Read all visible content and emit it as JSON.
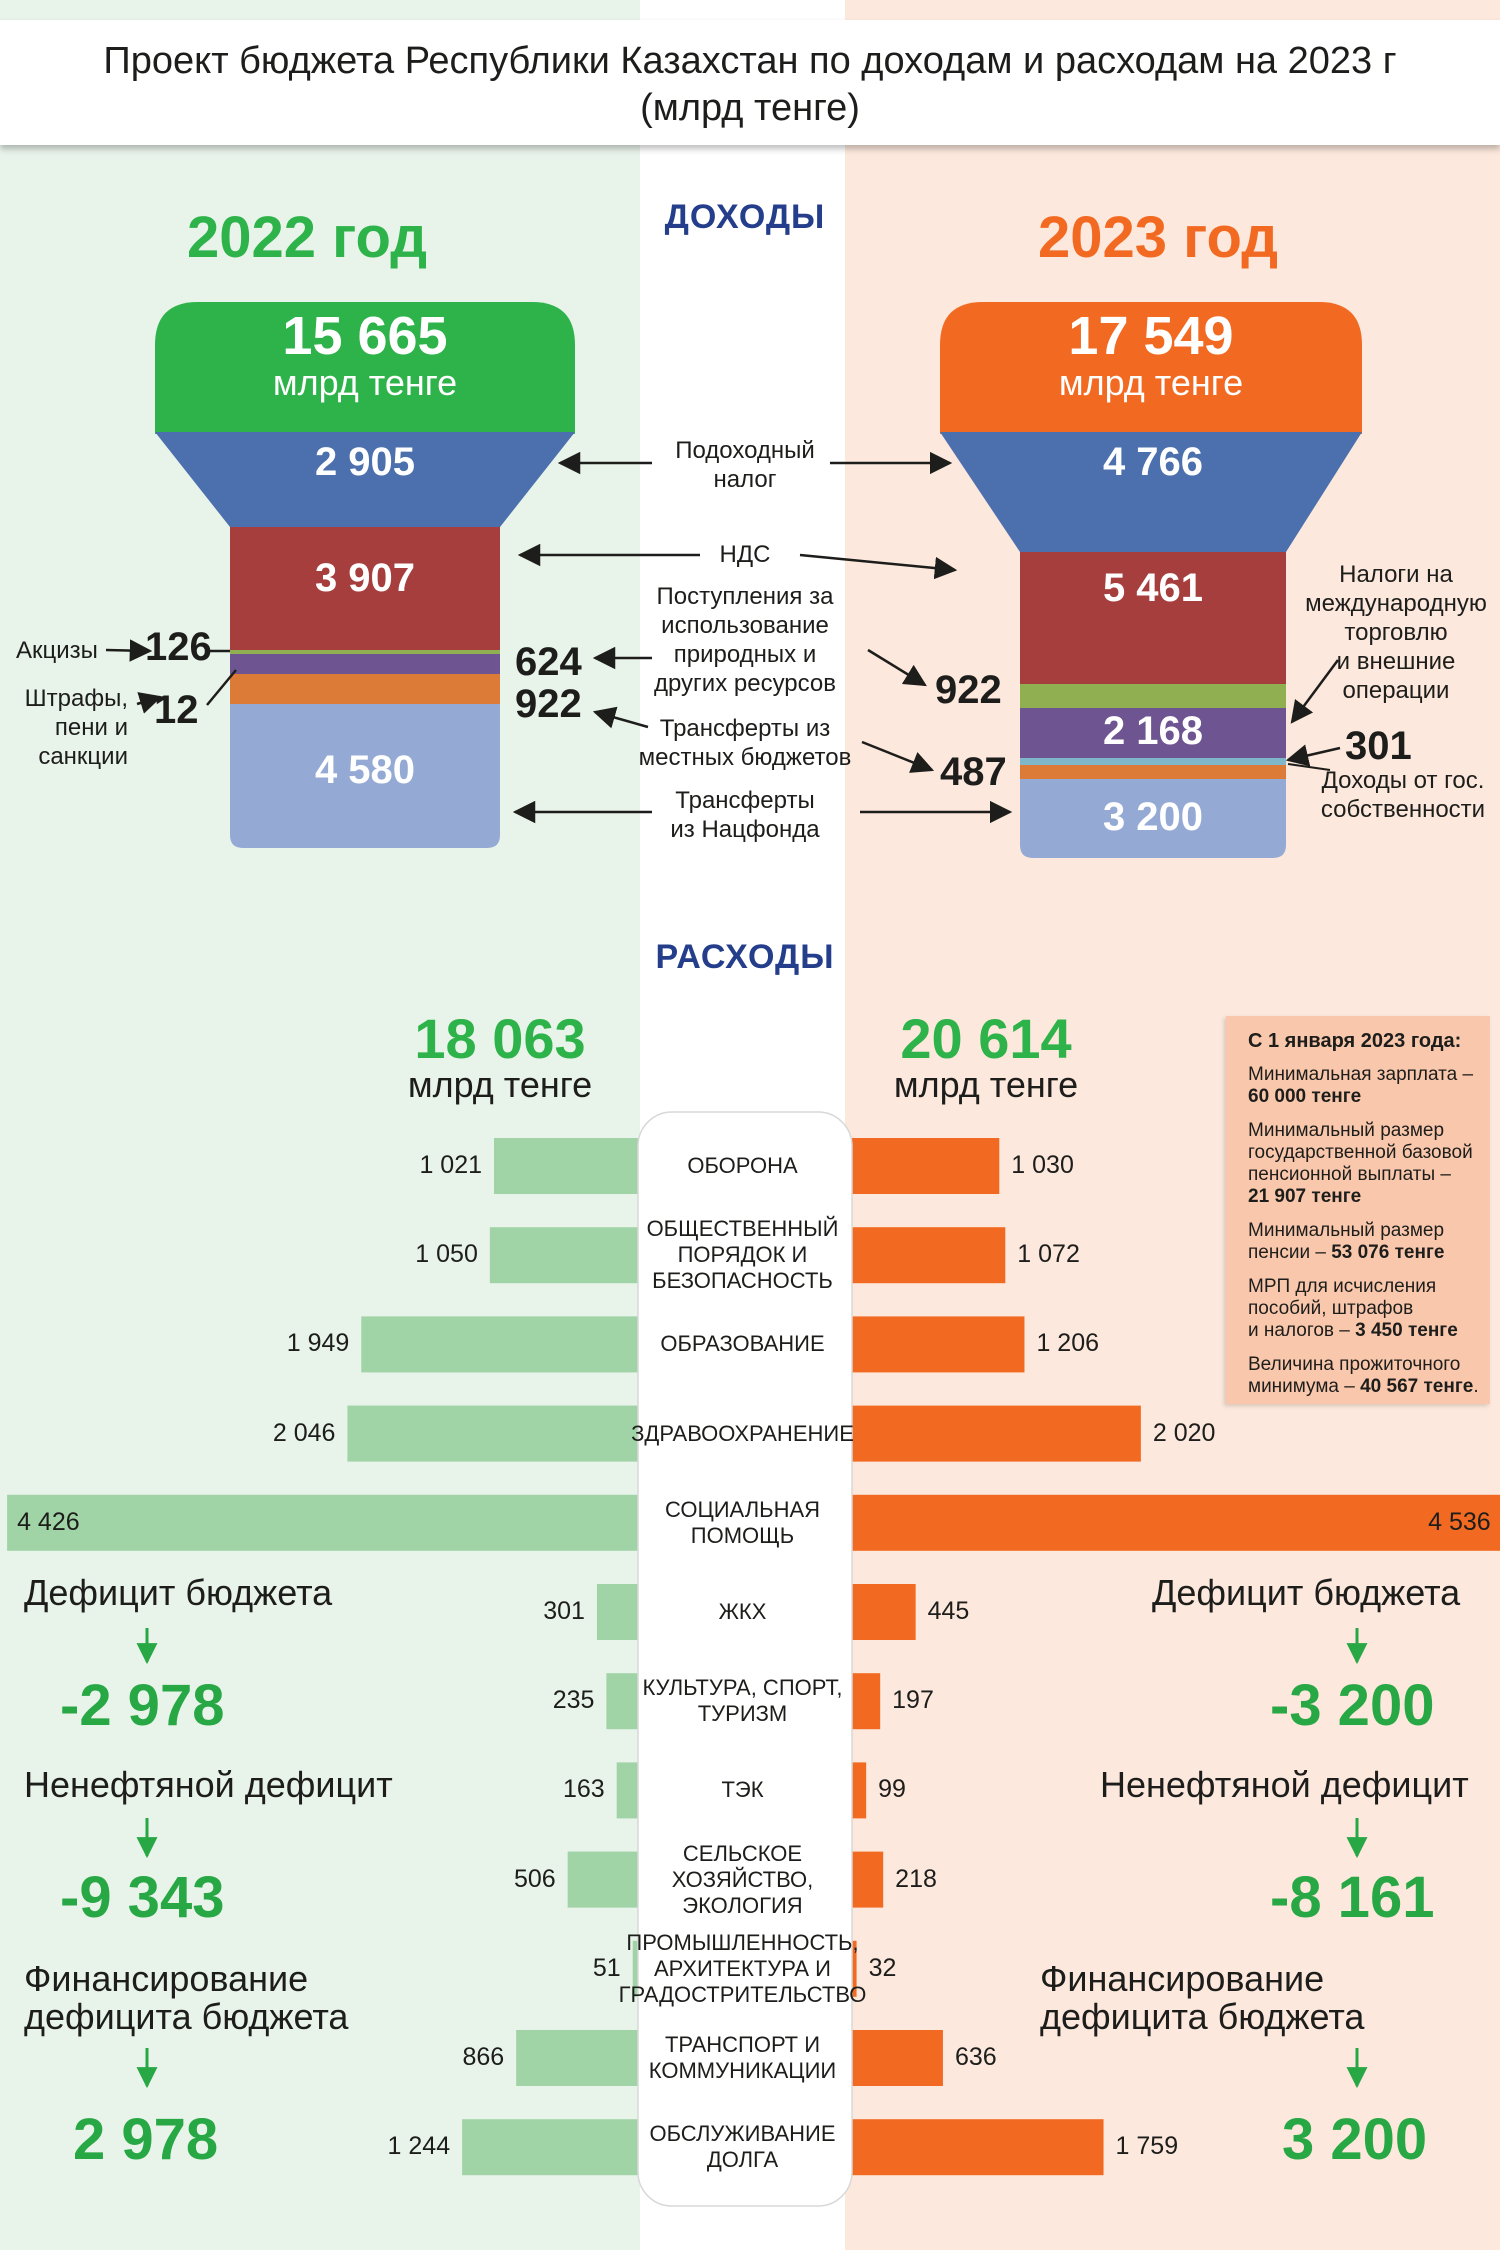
{
  "title": {
    "line1": "Проект бюджета Республики Казахстан по доходам и расходам на 2023 г",
    "line2": "(млрд тенге)"
  },
  "sections": {
    "income": "ДОХОДЫ",
    "expenses": "РАСХОДЫ"
  },
  "colors": {
    "green": "#2db34a",
    "orange": "#f26a22",
    "blue": "#4b70ad",
    "red": "#a63e3d",
    "olive": "#8faf50",
    "purple": "#6e5592",
    "amber": "#dc7b38",
    "lightblue": "#94aad4",
    "lightgreen": "#a0d4a6",
    "deficit_green": "#28a745"
  },
  "income": {
    "y2022": {
      "year": "2022 год",
      "total": "15 665",
      "unit": "млрд тенге",
      "values": {
        "income_tax": "2 905",
        "vat": "3 907",
        "excise": "126",
        "fines": "12",
        "resources": "624",
        "local_transfers": "922",
        "natfund": "4 580"
      }
    },
    "y2023": {
      "year": "2023 год",
      "total": "17 549",
      "unit": "млрд тенге",
      "values": {
        "income_tax": "4 766",
        "vat": "5 461",
        "resources": "922",
        "international_trade": "2 168",
        "state_property": "301",
        "local_transfers": "487",
        "natfund": "3 200"
      }
    },
    "labels": {
      "income_tax": [
        "Подоходный",
        "налог"
      ],
      "vat": "НДС",
      "resources": [
        "Поступления за",
        "использование",
        "природных и",
        "других ресурсов"
      ],
      "local_transfers": [
        "Трансферты из",
        "местных бюджетов"
      ],
      "natfund": [
        "Трансферты",
        "из Нацфонда"
      ],
      "excise": "Акцизы",
      "fines": [
        "Штрафы,",
        "пени и",
        "санкции"
      ],
      "international_trade": [
        "Налоги на",
        "международную",
        "торговлю",
        "и внешние",
        "операции"
      ],
      "state_property": [
        "Доходы от гос.",
        "собственности"
      ]
    }
  },
  "chart_data": {
    "type": "bar",
    "title": "РАСХОДЫ",
    "categories": [
      "ОБОРОНА",
      "ОБЩЕСТВЕННЫЙ ПОРЯДОК И БЕЗОПАСНОСТЬ",
      "ОБРАЗОВАНИЕ",
      "ЗДРАВООХРАНЕНИЕ",
      "СОЦИАЛЬНАЯ ПОМОЩЬ",
      "ЖКХ",
      "КУЛЬТУРА, СПОРТ, ТУРИЗМ",
      "ТЭК",
      "СЕЛЬСКОЕ ХОЗЯЙСТВО, ЭКОЛОГИЯ",
      "ПРОМЫШЛЕННОСТЬ, АРХИТЕКТУРА И ГРАДОСТРИТЕЛЬСТВО",
      "ТРАНСПОРТ И КОММУНИКАЦИИ",
      "ОБСЛУЖИВАНИЕ ДОЛГА"
    ],
    "category_lines": [
      [
        "ОБОРОНА"
      ],
      [
        "ОБЩЕСТВЕННЫЙ",
        "ПОРЯДОК И",
        "БЕЗОПАСНОСТЬ"
      ],
      [
        "ОБРАЗОВАНИЕ"
      ],
      [
        "ЗДРАВООХРАНЕНИЕ"
      ],
      [
        "СОЦИАЛЬНАЯ",
        "ПОМОЩЬ"
      ],
      [
        "ЖКХ"
      ],
      [
        "КУЛЬТУРА, СПОРТ,",
        "ТУРИЗМ"
      ],
      [
        "ТЭК"
      ],
      [
        "СЕЛЬСКОЕ",
        "ХОЗЯЙСТВО,",
        "ЭКОЛОГИЯ"
      ],
      [
        "ПРОМЫШЛЕННОСТЬ,",
        "АРХИТЕКТУРА И",
        "ГРАДОСТРИТЕЛЬСТВО"
      ],
      [
        "ТРАНСПОРТ И",
        "КОММУНИКАЦИИ"
      ],
      [
        "ОБСЛУЖИВАНИЕ",
        "ДОЛГА"
      ]
    ],
    "series": [
      {
        "name": "2022",
        "values": [
          1021,
          1050,
          1949,
          2046,
          4426,
          301,
          235,
          163,
          506,
          51,
          866,
          1244
        ],
        "labels": [
          "1 021",
          "1 050",
          "1 949",
          "2 046",
          "4 426",
          "301",
          "235",
          "163",
          "506",
          "51",
          "866",
          "1 244"
        ],
        "total": "18 063",
        "unit": "млрд тенге"
      },
      {
        "name": "2023",
        "values": [
          1030,
          1072,
          1206,
          2020,
          4536,
          445,
          197,
          99,
          218,
          32,
          636,
          1759
        ],
        "labels": [
          "1 030",
          "1 072",
          "1 206",
          "2 020",
          "4 536",
          "445",
          "197",
          "99",
          "218",
          "32",
          "636",
          "1 759"
        ],
        "total": "20 614",
        "unit": "млрд тенге"
      }
    ]
  },
  "deficit": {
    "left": {
      "budget_label": "Дефицит бюджета",
      "budget_value": "-2 978",
      "nonoil_label": "Ненефтяной дефицит",
      "nonoil_value": "-9 343",
      "financing_label1": "Финансирование",
      "financing_label2": "дефицита бюджета",
      "financing_value": "2 978"
    },
    "right": {
      "budget_label": "Дефицит бюджета",
      "budget_value": "-3 200",
      "nonoil_label": "Ненефтяной дефицит",
      "nonoil_value": "-8 161",
      "financing_label1": "Финансирование",
      "financing_label2": "дефицита бюджета",
      "financing_value": "3 200"
    }
  },
  "info": {
    "title": "С 1 января 2023 года:",
    "min_wage": [
      "Минимальная зарплата –",
      "60 000 тенге"
    ],
    "min_pension_base": [
      "Минимальный размер",
      "государственной базовой",
      "пенсионной выплаты –",
      "21 907 тенге"
    ],
    "min_pension": [
      "Минимальный размер",
      "пенсии – ",
      "53 076 тенге"
    ],
    "mrp": [
      "МРП для исчисления",
      "пособий, штрафов",
      "и налогов – ",
      "3 450 тенге"
    ],
    "subsistence": [
      "Величина прожиточного",
      "минимума – ",
      "40 567 тенге",
      "."
    ]
  }
}
